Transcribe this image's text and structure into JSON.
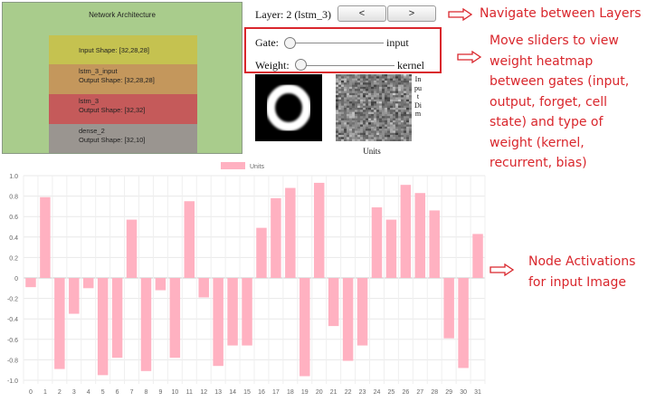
{
  "architecture": {
    "title": "Network Architecture",
    "layers": [
      {
        "lines": [
          "Input Shape: [32,28,28]"
        ],
        "color": "#c5c250"
      },
      {
        "lines": [
          "lstm_3_input",
          "Output Shape: [32,28,28]"
        ],
        "color": "#c4975c"
      },
      {
        "lines": [
          "lstm_3",
          "Output Shape: [32,32]"
        ],
        "color": "#c55a5a"
      },
      {
        "lines": [
          "dense_2",
          "Output Shape: [32,10]"
        ],
        "color": "#9a9590"
      }
    ]
  },
  "layer_nav": {
    "label": "Layer: 2 (lstm_3)",
    "prev_label": "<",
    "next_label": ">"
  },
  "sliders": {
    "gate": {
      "label": "Gate:",
      "value": "input",
      "level": 0
    },
    "weight": {
      "label": "Weight:",
      "value": "kernel",
      "level": 0
    }
  },
  "heatmap": {
    "dim_label": "Input Dim",
    "units_label": "Units"
  },
  "annotations": {
    "navigate": "Navigate between Layers",
    "sliders": [
      "Move sliders to view",
      "weight heatmap",
      "between gates (input,",
      "output, forget, cell",
      "state) and type of",
      "weight (kernel,",
      "recurrent, bias)"
    ],
    "activations": [
      "Node Activations",
      "for input Image"
    ]
  },
  "colors": {
    "annotation": "#d9262c",
    "bar_fill": "#ffb1c1",
    "bar_stroke": "#ff6384",
    "panel_bg": "#a9cc8c"
  },
  "chart_data": {
    "type": "bar",
    "series": [
      {
        "name": "Units",
        "values": [
          -0.09,
          0.79,
          -0.89,
          -0.35,
          -0.1,
          -0.95,
          -0.78,
          0.57,
          -0.91,
          -0.12,
          -0.78,
          0.75,
          -0.19,
          -0.86,
          -0.66,
          -0.66,
          0.49,
          0.78,
          0.88,
          -0.96,
          0.93,
          -0.47,
          -0.81,
          -0.66,
          0.69,
          0.57,
          0.91,
          0.83,
          0.66,
          -0.59,
          -0.88,
          0.43
        ]
      }
    ],
    "categories": [
      "0",
      "1",
      "2",
      "3",
      "4",
      "5",
      "6",
      "7",
      "8",
      "9",
      "10",
      "11",
      "12",
      "13",
      "14",
      "15",
      "16",
      "17",
      "18",
      "19",
      "20",
      "21",
      "22",
      "23",
      "24",
      "25",
      "26",
      "27",
      "28",
      "29",
      "30",
      "31"
    ],
    "ylim": [
      -1.0,
      1.0
    ],
    "yticks": [
      "1.0",
      "0.8",
      "0.6",
      "0.4",
      "0.2",
      "0",
      "-0.2",
      "-0.4",
      "-0.6",
      "-0.8",
      "-1.0"
    ],
    "grid": true,
    "legend_position": "top-center"
  }
}
